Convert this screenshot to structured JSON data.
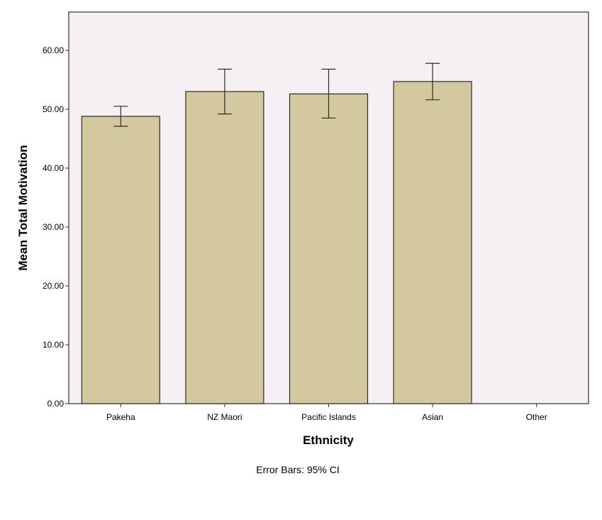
{
  "chart_data": {
    "type": "bar",
    "categories": [
      "Pakeha",
      "NZ Maori",
      "Pacific Islands",
      "Asian",
      "Other"
    ],
    "values": [
      48.8,
      53.0,
      52.6,
      54.7,
      null
    ],
    "ci_lower": [
      47.1,
      49.2,
      48.5,
      51.6,
      null
    ],
    "ci_upper": [
      50.5,
      56.8,
      56.8,
      57.8,
      null
    ],
    "xlabel": "Ethnicity",
    "ylabel": "Mean Total Motivation",
    "ylim": [
      0,
      66.5
    ],
    "yticks": [
      0,
      10,
      20,
      30,
      40,
      50,
      60
    ],
    "ytick_labels": [
      "0.00",
      "10.00",
      "20.00",
      "30.00",
      "40.00",
      "50.00",
      "60.00"
    ],
    "footnote": "Error Bars: 95% CI",
    "grid": false,
    "colors": {
      "bar_fill": "#d4c99e",
      "bar_stroke": "#2a2a2a",
      "plot_background": "#f6f0f5",
      "axis": "#333333",
      "error_bar": "#2a2a2a"
    }
  }
}
